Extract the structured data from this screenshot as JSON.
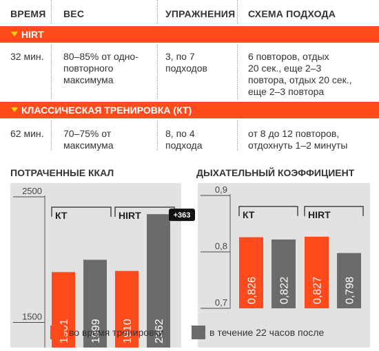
{
  "table": {
    "headers": [
      "ВРЕМЯ",
      "ВЕС",
      "УПРАЖНЕНИЯ",
      "СХЕМА ПОДХОДА"
    ],
    "sections": [
      {
        "label": "HIRT",
        "time": "32 мин.",
        "weight": [
          "80–85% от одно-",
          "повторного",
          "максимума"
        ],
        "exercises": [
          "3, по 7",
          "подходов"
        ],
        "scheme": [
          "6 повторов, отдых",
          "20 сек., еще 2–3",
          "повтора, отдых 20 сек.,",
          "еще 2–3 повтора"
        ]
      },
      {
        "label": "КЛАССИЧЕСКАЯ ТРЕНИРОВКА (КТ)",
        "time": "62 мин.",
        "weight": [
          "70–75% от",
          "максимума"
        ],
        "exercises": [
          "8, по 4",
          "подхода"
        ],
        "scheme": [
          "от 8 до 12 повторов,",
          "отдохнуть 1–2 минуты"
        ]
      }
    ]
  },
  "colors": {
    "orange": "#ff4a1c",
    "gray": "#6b6b6b",
    "panel_bg": "#e2e2e2",
    "yellow": "#ffd200"
  },
  "chart_data": [
    {
      "type": "bar",
      "title": "ПОТРАЧЕННЫЕ ККАЛ",
      "ylim": [
        1300,
        2500
      ],
      "yticks": [
        "2500",
        "1500"
      ],
      "tick_values": [
        2500,
        1500
      ],
      "groups": [
        "КТ",
        "HIRT"
      ],
      "series": [
        {
          "name": "во время тренировки",
          "values": [
            1901,
            1910
          ]
        },
        {
          "name": "в течение 22 часов после",
          "values": [
            1999,
            2362
          ]
        }
      ],
      "value_labels": [
        [
          "1901",
          "1999"
        ],
        [
          "1910",
          "2362"
        ]
      ],
      "annotation": "+363"
    },
    {
      "type": "bar",
      "title": "ДЫХАТЕЛЬНЫЙ КОЭФФИЦИЕНТ",
      "ylim": [
        0.7,
        0.9
      ],
      "yticks": [
        "0,9",
        "0,8",
        "0,7"
      ],
      "tick_values": [
        0.9,
        0.8,
        0.7
      ],
      "groups": [
        "КТ",
        "HIRT"
      ],
      "series": [
        {
          "name": "во время тренировки",
          "values": [
            0.826,
            0.827
          ]
        },
        {
          "name": "в течение 22 часов после",
          "values": [
            0.822,
            0.798
          ]
        }
      ],
      "value_labels": [
        [
          "0,826",
          "0,822"
        ],
        [
          "0,827",
          "0,798"
        ]
      ]
    }
  ],
  "legend": {
    "during": "во время тренировки",
    "after": "в течение 22 часов после"
  }
}
